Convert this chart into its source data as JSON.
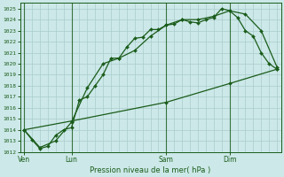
{
  "title": "Pression niveau de la mer( hPa )",
  "bg_color": "#cce8e8",
  "grid_color": "#aacccc",
  "line_color": "#1a5c1a",
  "ylim": [
    1012,
    1025.5
  ],
  "yticks": [
    1012,
    1013,
    1014,
    1015,
    1016,
    1017,
    1018,
    1019,
    1020,
    1021,
    1022,
    1023,
    1024,
    1025
  ],
  "xtick_labels": [
    "Ven",
    "Lun",
    "Sam",
    "Dim"
  ],
  "xtick_positions": [
    0,
    6,
    18,
    26
  ],
  "total_points": 33,
  "line1_x": [
    0,
    1,
    2,
    3,
    4,
    5,
    6,
    7,
    8,
    9,
    10,
    11,
    12,
    13,
    14,
    15,
    16,
    17,
    18,
    19,
    20,
    21,
    22,
    23,
    24,
    25,
    26,
    27,
    28,
    29,
    30,
    31,
    32
  ],
  "line1_y": [
    1014.0,
    1013.1,
    1012.3,
    1012.5,
    1013.5,
    1014.0,
    1014.2,
    1016.7,
    1017.0,
    1018.0,
    1019.0,
    1020.5,
    1020.5,
    1021.5,
    1022.3,
    1022.4,
    1023.1,
    1023.1,
    1023.5,
    1023.6,
    1024.0,
    1023.8,
    1023.7,
    1024.0,
    1024.2,
    1025.0,
    1024.8,
    1024.2,
    1023.0,
    1022.5,
    1021.0,
    1020.0,
    1019.5
  ],
  "line2_x": [
    0,
    2,
    4,
    6,
    8,
    10,
    12,
    14,
    16,
    18,
    20,
    22,
    24,
    26,
    28,
    30,
    32
  ],
  "line2_y": [
    1014.0,
    1012.4,
    1013.0,
    1014.7,
    1017.8,
    1020.0,
    1020.5,
    1021.2,
    1022.5,
    1023.5,
    1024.0,
    1024.0,
    1024.3,
    1024.8,
    1024.5,
    1023.0,
    1019.7
  ],
  "line3_x": [
    0,
    6,
    18,
    26,
    32
  ],
  "line3_y": [
    1014.0,
    1014.8,
    1016.5,
    1018.2,
    1019.5
  ],
  "vline_positions": [
    0,
    6,
    18,
    26
  ],
  "marker": "D",
  "markersize": 2.0,
  "linewidth": 0.9
}
